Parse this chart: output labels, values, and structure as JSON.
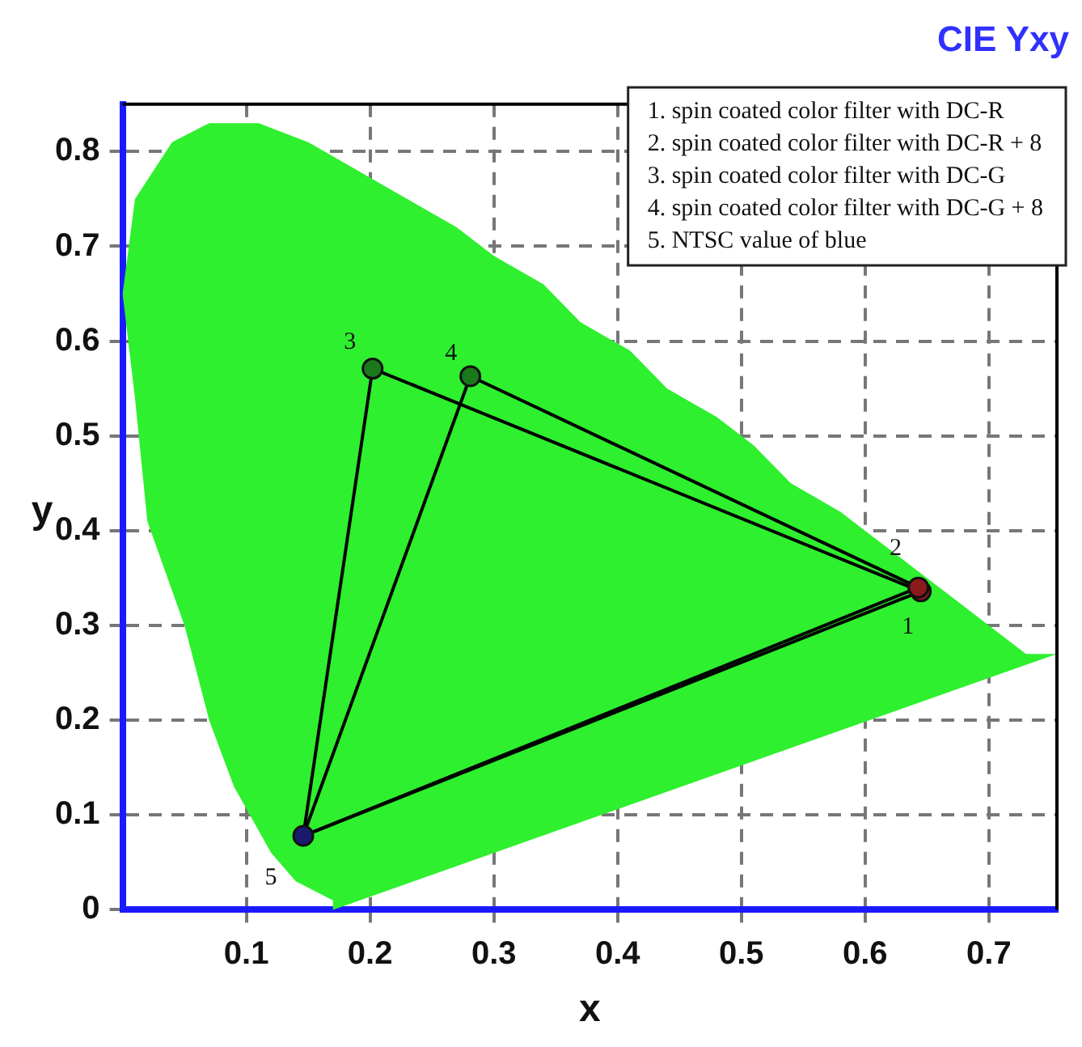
{
  "chart_data": {
    "type": "line",
    "title": "CIE Yxy",
    "xlabel": "x",
    "ylabel": "y",
    "xlim": [
      0,
      0.755
    ],
    "xticks": [
      0.1,
      0.2,
      0.3,
      0.4,
      0.5,
      0.6,
      0.7
    ],
    "ylim": [
      0,
      0.85
    ],
    "yticks": [
      0,
      0.1,
      0.2,
      0.3,
      0.4,
      0.5,
      0.6,
      0.7,
      0.8
    ],
    "grid": true,
    "legend": false,
    "series": [
      {
        "type": "area",
        "color": "#2ef02e",
        "x": [
          0.17,
          0.17,
          0.14,
          0.12,
          0.09,
          0.07,
          0.05,
          0.02,
          0.01,
          0.0,
          0.01,
          0.04,
          0.07,
          0.11,
          0.15,
          0.19,
          0.23,
          0.27,
          0.3,
          0.34,
          0.37,
          0.41,
          0.44,
          0.48,
          0.51,
          0.54,
          0.58,
          0.6,
          0.63,
          0.65,
          0.67,
          0.69,
          0.73,
          0.755,
          0.17
        ],
        "values": [
          0.0,
          0.01,
          0.03,
          0.06,
          0.13,
          0.2,
          0.3,
          0.41,
          0.54,
          0.65,
          0.75,
          0.81,
          0.83,
          0.83,
          0.81,
          0.78,
          0.75,
          0.72,
          0.69,
          0.66,
          0.62,
          0.59,
          0.55,
          0.52,
          0.49,
          0.45,
          0.42,
          0.4,
          0.37,
          0.35,
          0.33,
          0.31,
          0.27,
          0.27,
          0.0
        ]
      },
      {
        "type": "line",
        "color": "#000000",
        "marker": "none",
        "x": [
          0.202,
          0.645
        ],
        "values": [
          0.571,
          0.336
        ]
      },
      {
        "type": "line",
        "color": "#000000",
        "marker": "none",
        "x": [
          0.146,
          0.645
        ],
        "values": [
          0.078,
          0.336
        ]
      },
      {
        "type": "line",
        "color": "#000000",
        "marker": "none",
        "x": [
          0.146,
          0.202
        ],
        "values": [
          0.078,
          0.571
        ]
      },
      {
        "type": "line",
        "color": "#000000",
        "marker": "none",
        "x": [
          0.281,
          0.643
        ],
        "values": [
          0.563,
          0.34
        ]
      },
      {
        "type": "line",
        "color": "#000000",
        "marker": "none",
        "x": [
          0.146,
          0.643
        ],
        "values": [
          0.078,
          0.34
        ]
      },
      {
        "type": "line",
        "color": "#000000",
        "marker": "none",
        "x": [
          0.146,
          0.281
        ],
        "values": [
          0.078,
          0.563
        ]
      },
      {
        "type": "scatter",
        "marker": "circle",
        "x": [
          0.645,
          0.643,
          0.202,
          0.281,
          0.146
        ],
        "values": [
          0.336,
          0.34,
          0.571,
          0.563,
          0.078
        ],
        "colors": [
          "#8b1a1a",
          "#8b1a1a",
          "#1a7a1a",
          "#1a7a1a",
          "#1a1a6e"
        ]
      }
    ],
    "annotations": [
      "1. spin coated color filter with DC-R",
      "2. spin coated color filter with DC-R + 8",
      "3. spin coated color filter with DC-G",
      "4. spin coated color filter with DC-G + 8",
      "5. NTSC value of blue",
      {
        "text": "1",
        "x": 0.645,
        "y": 0.336
      },
      {
        "text": "2",
        "x": 0.643,
        "y": 0.34
      },
      {
        "text": "3",
        "x": 0.202,
        "y": 0.571
      },
      {
        "text": "4",
        "x": 0.281,
        "y": 0.563
      },
      {
        "text": "5",
        "x": 0.146,
        "y": 0.078
      }
    ]
  }
}
